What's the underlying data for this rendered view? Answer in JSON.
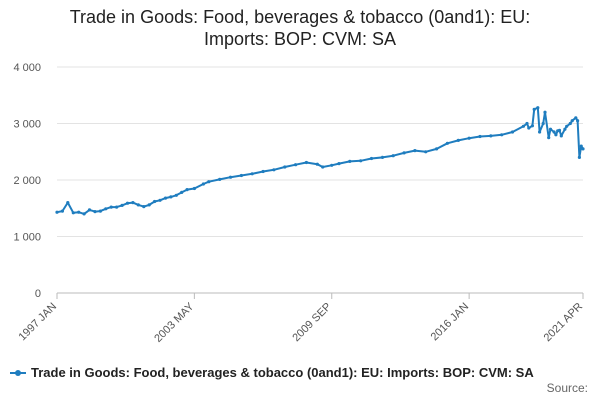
{
  "chart_data": {
    "type": "line",
    "title_lines": [
      "Trade in Goods: Food, beverages & tobacco (0and1): EU:",
      "Imports: BOP: CVM: SA"
    ],
    "xlabel": "",
    "ylabel": "",
    "ylim": [
      0,
      4000
    ],
    "y_ticks": [
      0,
      1000,
      2000,
      3000,
      4000
    ],
    "y_tick_labels": [
      "0",
      "1 000",
      "2 000",
      "3 000",
      "4 000"
    ],
    "x_tick_labels": [
      "1997 JAN",
      "2003 MAY",
      "2009 SEP",
      "2016 JAN",
      "2021 APR"
    ],
    "grid": true,
    "legend_position": "bottom-left",
    "series_color": "#1f7dbf",
    "series": [
      {
        "name": "Trade in Goods: Food, beverages & tobacco (0and1): EU: Imports: BOP: CVM: SA",
        "x": [
          "1997 JAN",
          "1997 APR",
          "1997 JUL",
          "1997 OCT",
          "1998 JAN",
          "1998 APR",
          "1998 JUL",
          "1998 OCT",
          "1999 JAN",
          "1999 APR",
          "1999 JUL",
          "1999 OCT",
          "2000 JAN",
          "2000 APR",
          "2000 JUL",
          "2000 OCT",
          "2001 JAN",
          "2001 APR",
          "2001 JUL",
          "2001 OCT",
          "2002 JAN",
          "2002 APR",
          "2002 JUL",
          "2002 OCT",
          "2003 JAN",
          "2003 MAY",
          "2003 OCT",
          "2004 JAN",
          "2004 JUL",
          "2005 JAN",
          "2005 JUL",
          "2006 JAN",
          "2006 JUL",
          "2007 JAN",
          "2007 JUL",
          "2008 JAN",
          "2008 JUL",
          "2009 JAN",
          "2009 APR",
          "2009 SEP",
          "2010 JAN",
          "2010 JUL",
          "2011 JAN",
          "2011 JUL",
          "2012 JAN",
          "2012 JUL",
          "2013 JAN",
          "2013 JUL",
          "2014 JAN",
          "2014 JUL",
          "2015 JAN",
          "2015 JUL",
          "2016 JAN",
          "2016 JUL",
          "2017 JAN",
          "2017 JUL",
          "2018 JAN",
          "2018 JUL",
          "2018 SEP",
          "2018 OCT",
          "2018 DEC",
          "2019 JAN",
          "2019 MAR",
          "2019 APR",
          "2019 JUN",
          "2019 JUL",
          "2019 SEP",
          "2019 OCT",
          "2019 DEC",
          "2020 JAN",
          "2020 FEB",
          "2020 MAR",
          "2020 APR",
          "2020 JUN",
          "2020 JUL",
          "2020 SEP",
          "2020 OCT",
          "2020 DEC",
          "2021 JAN",
          "2021 FEB",
          "2021 MAR",
          "2021 APR"
        ],
        "values": [
          1430,
          1450,
          1600,
          1420,
          1430,
          1400,
          1470,
          1440,
          1450,
          1490,
          1520,
          1520,
          1550,
          1590,
          1600,
          1560,
          1530,
          1560,
          1620,
          1640,
          1680,
          1700,
          1730,
          1780,
          1830,
          1850,
          1930,
          1970,
          2010,
          2050,
          2080,
          2110,
          2150,
          2180,
          2230,
          2270,
          2310,
          2280,
          2230,
          2260,
          2290,
          2330,
          2340,
          2380,
          2400,
          2430,
          2480,
          2520,
          2500,
          2550,
          2650,
          2700,
          2740,
          2770,
          2780,
          2800,
          2850,
          2950,
          3000,
          2920,
          2960,
          3250,
          3280,
          2850,
          3000,
          3200,
          2750,
          2900,
          2850,
          2800,
          2870,
          2880,
          2780,
          2900,
          2950,
          3000,
          3050,
          3100,
          3050,
          2400,
          2600,
          2550
        ]
      }
    ]
  },
  "source_label": "Source:"
}
